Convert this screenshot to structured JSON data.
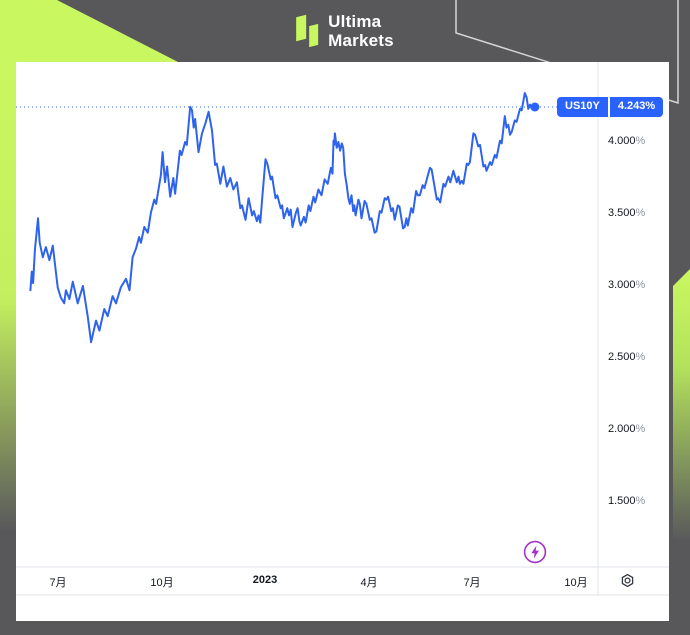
{
  "header": {
    "brand_line1": "Ultima",
    "brand_line2": "Markets"
  },
  "symbol_tag": {
    "symbol": "US10Y",
    "price": "4.243%"
  },
  "colors": {
    "frame_gray": "#58585a",
    "accent_lime": "#c9f75f",
    "line_blue": "#2e63ec",
    "tag_blue": "#2962ff",
    "flash_purple": "#a233c9",
    "separator_gray": "#e0e3eb",
    "text_dark": "#131722",
    "text_muted": "#8c939f",
    "deco_outline": "#d6d6d6"
  },
  "chart_data": {
    "type": "line",
    "symbol": "US10Y",
    "last_value": 4.243,
    "last_value_label": "4.243%",
    "x_unit": "months_since_2022-06-01",
    "grid": false,
    "legend_position": "none",
    "y_axis_range": [
      1.05,
      4.56
    ],
    "x_ticks": [
      {
        "label": "7月",
        "t": 1
      },
      {
        "label": "10月",
        "t": 4
      },
      {
        "label": "2023",
        "t": 7
      },
      {
        "label": "4月",
        "t": 10
      },
      {
        "label": "7月",
        "t": 13
      },
      {
        "label": "10月",
        "t": 16
      }
    ],
    "y_ticks": [
      {
        "num": "4.000",
        "suffix": "%",
        "value": 4.0
      },
      {
        "num": "3.500",
        "suffix": "%",
        "value": 3.5
      },
      {
        "num": "3.000",
        "suffix": "%",
        "value": 3.0
      },
      {
        "num": "2.500",
        "suffix": "%",
        "value": 2.5
      },
      {
        "num": "2.000",
        "suffix": "%",
        "value": 2.0
      },
      {
        "num": "1.500",
        "suffix": "%",
        "value": 1.5
      }
    ],
    "series": [
      {
        "name": "US10Y",
        "color": "#2e63ec",
        "points": [
          [
            0.2,
            2.97
          ],
          [
            0.24,
            3.1
          ],
          [
            0.28,
            3.02
          ],
          [
            0.33,
            3.25
          ],
          [
            0.42,
            3.47
          ],
          [
            0.47,
            3.3
          ],
          [
            0.56,
            3.2
          ],
          [
            0.65,
            3.27
          ],
          [
            0.75,
            3.18
          ],
          [
            0.85,
            3.28
          ],
          [
            0.99,
            2.99
          ],
          [
            1.08,
            2.92
          ],
          [
            1.18,
            2.88
          ],
          [
            1.23,
            2.97
          ],
          [
            1.33,
            2.91
          ],
          [
            1.43,
            3.03
          ],
          [
            1.57,
            2.88
          ],
          [
            1.72,
            3.0
          ],
          [
            1.86,
            2.79
          ],
          [
            1.96,
            2.61
          ],
          [
            2.1,
            2.76
          ],
          [
            2.2,
            2.69
          ],
          [
            2.34,
            2.84
          ],
          [
            2.44,
            2.79
          ],
          [
            2.58,
            2.93
          ],
          [
            2.68,
            2.88
          ],
          [
            2.82,
            2.99
          ],
          [
            2.97,
            3.05
          ],
          [
            3.07,
            2.97
          ],
          [
            3.16,
            3.2
          ],
          [
            3.26,
            3.26
          ],
          [
            3.35,
            3.34
          ],
          [
            3.4,
            3.3
          ],
          [
            3.5,
            3.41
          ],
          [
            3.6,
            3.37
          ],
          [
            3.69,
            3.51
          ],
          [
            3.79,
            3.6
          ],
          [
            3.84,
            3.57
          ],
          [
            3.93,
            3.7
          ],
          [
            3.98,
            3.77
          ],
          [
            4.03,
            3.93
          ],
          [
            4.1,
            3.72
          ],
          [
            4.16,
            3.83
          ],
          [
            4.25,
            3.62
          ],
          [
            4.34,
            3.75
          ],
          [
            4.39,
            3.64
          ],
          [
            4.53,
            3.94
          ],
          [
            4.58,
            3.91
          ],
          [
            4.68,
            4.0
          ],
          [
            4.73,
            3.98
          ],
          [
            4.83,
            4.245
          ],
          [
            4.88,
            4.22
          ],
          [
            4.93,
            4.1
          ],
          [
            4.97,
            4.16
          ],
          [
            5.07,
            3.93
          ],
          [
            5.17,
            4.06
          ],
          [
            5.27,
            4.13
          ],
          [
            5.36,
            4.21
          ],
          [
            5.46,
            4.08
          ],
          [
            5.55,
            3.84
          ],
          [
            5.6,
            3.85
          ],
          [
            5.7,
            3.71
          ],
          [
            5.79,
            3.83
          ],
          [
            5.89,
            3.69
          ],
          [
            5.99,
            3.75
          ],
          [
            6.08,
            3.67
          ],
          [
            6.18,
            3.72
          ],
          [
            6.28,
            3.54
          ],
          [
            6.33,
            3.56
          ],
          [
            6.43,
            3.46
          ],
          [
            6.52,
            3.61
          ],
          [
            6.62,
            3.49
          ],
          [
            6.67,
            3.52
          ],
          [
            6.76,
            3.45
          ],
          [
            6.81,
            3.49
          ],
          [
            6.86,
            3.44
          ],
          [
            6.91,
            3.6
          ],
          [
            6.96,
            3.74
          ],
          [
            7.01,
            3.88
          ],
          [
            7.06,
            3.85
          ],
          [
            7.16,
            3.74
          ],
          [
            7.2,
            3.76
          ],
          [
            7.3,
            3.61
          ],
          [
            7.35,
            3.63
          ],
          [
            7.45,
            3.54
          ],
          [
            7.49,
            3.56
          ],
          [
            7.54,
            3.47
          ],
          [
            7.64,
            3.54
          ],
          [
            7.69,
            3.49
          ],
          [
            7.74,
            3.53
          ],
          [
            7.79,
            3.41
          ],
          [
            7.89,
            3.51
          ],
          [
            7.94,
            3.54
          ],
          [
            7.99,
            3.45
          ],
          [
            8.03,
            3.42
          ],
          [
            8.12,
            3.48
          ],
          [
            8.17,
            3.44
          ],
          [
            8.26,
            3.56
          ],
          [
            8.31,
            3.52
          ],
          [
            8.4,
            3.62
          ],
          [
            8.45,
            3.58
          ],
          [
            8.54,
            3.67
          ],
          [
            8.63,
            3.63
          ],
          [
            8.72,
            3.74
          ],
          [
            8.81,
            3.71
          ],
          [
            8.9,
            3.82
          ],
          [
            8.95,
            3.78
          ],
          [
            8.98,
            4.01
          ],
          [
            9.0,
            3.98
          ],
          [
            9.02,
            4.06
          ],
          [
            9.07,
            3.96
          ],
          [
            9.12,
            4.0
          ],
          [
            9.17,
            3.94
          ],
          [
            9.22,
            3.99
          ],
          [
            9.26,
            3.96
          ],
          [
            9.31,
            3.78
          ],
          [
            9.36,
            3.7
          ],
          [
            9.41,
            3.61
          ],
          [
            9.45,
            3.57
          ],
          [
            9.5,
            3.63
          ],
          [
            9.55,
            3.52
          ],
          [
            9.58,
            3.56
          ],
          [
            9.62,
            3.49
          ],
          [
            9.7,
            3.6
          ],
          [
            9.74,
            3.57
          ],
          [
            9.79,
            3.47
          ],
          [
            9.88,
            3.59
          ],
          [
            9.93,
            3.57
          ],
          [
            10.03,
            3.46
          ],
          [
            10.08,
            3.47
          ],
          [
            10.17,
            3.37
          ],
          [
            10.22,
            3.38
          ],
          [
            10.32,
            3.52
          ],
          [
            10.37,
            3.51
          ],
          [
            10.46,
            3.61
          ],
          [
            10.51,
            3.6
          ],
          [
            10.56,
            3.62
          ],
          [
            10.65,
            3.52
          ],
          [
            10.7,
            3.54
          ],
          [
            10.75,
            3.46
          ],
          [
            10.84,
            3.56
          ],
          [
            10.89,
            3.55
          ],
          [
            10.99,
            3.4
          ],
          [
            11.04,
            3.41
          ],
          [
            11.09,
            3.47
          ],
          [
            11.13,
            3.42
          ],
          [
            11.23,
            3.54
          ],
          [
            11.28,
            3.51
          ],
          [
            11.37,
            3.66
          ],
          [
            11.42,
            3.63
          ],
          [
            11.48,
            3.63
          ],
          [
            11.56,
            3.7
          ],
          [
            11.61,
            3.68
          ],
          [
            11.77,
            3.82
          ],
          [
            11.82,
            3.81
          ],
          [
            11.97,
            3.6
          ],
          [
            12.01,
            3.61
          ],
          [
            12.07,
            3.58
          ],
          [
            12.16,
            3.71
          ],
          [
            12.21,
            3.69
          ],
          [
            12.31,
            3.76
          ],
          [
            12.36,
            3.72
          ],
          [
            12.45,
            3.8
          ],
          [
            12.55,
            3.72
          ],
          [
            12.6,
            3.76
          ],
          [
            12.64,
            3.71
          ],
          [
            12.69,
            3.73
          ],
          [
            12.74,
            3.71
          ],
          [
            12.84,
            3.85
          ],
          [
            12.88,
            3.84
          ],
          [
            12.93,
            3.86
          ],
          [
            13.03,
            4.06
          ],
          [
            13.08,
            4.05
          ],
          [
            13.17,
            3.97
          ],
          [
            13.22,
            3.98
          ],
          [
            13.32,
            3.83
          ],
          [
            13.37,
            3.84
          ],
          [
            13.41,
            3.8
          ],
          [
            13.51,
            3.86
          ],
          [
            13.56,
            3.84
          ],
          [
            13.65,
            3.91
          ],
          [
            13.7,
            3.89
          ],
          [
            13.8,
            4.01
          ],
          [
            13.85,
            3.99
          ],
          [
            13.94,
            4.18
          ],
          [
            13.99,
            4.1
          ],
          [
            14.04,
            4.12
          ],
          [
            14.09,
            4.05
          ],
          [
            14.14,
            4.07
          ],
          [
            14.23,
            4.15
          ],
          [
            14.28,
            4.14
          ],
          [
            14.38,
            4.23
          ],
          [
            14.43,
            4.22
          ],
          [
            14.52,
            4.34
          ],
          [
            14.57,
            4.31
          ],
          [
            14.62,
            4.23
          ],
          [
            14.67,
            4.26
          ],
          [
            14.72,
            4.23
          ],
          [
            14.81,
            4.243
          ]
        ]
      }
    ]
  }
}
